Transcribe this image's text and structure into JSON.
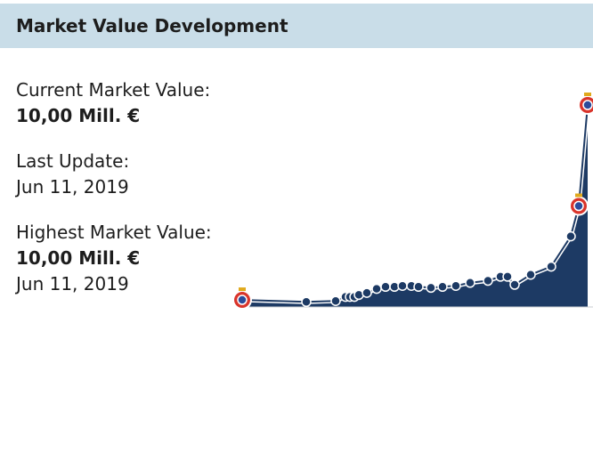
{
  "box": {
    "title": "Market Value Development"
  },
  "info": {
    "current_label": "Current Market Value:",
    "current_value": "10,00 Mill. €",
    "update_label": "Last Update:",
    "update_date": "Jun 11, 2019",
    "highest_label": "Highest Market Value:",
    "highest_value": "10,00 Mill. €",
    "highest_date": "Jun 11, 2019"
  },
  "colors": {
    "header_bg": "#c9dde8",
    "area_fill": "#1d3a64",
    "line": "#ffffff",
    "point": "#1d3a64",
    "club_badge": "#d9342b"
  },
  "chart_data": {
    "type": "area",
    "title": "",
    "xlabel": "",
    "ylabel": "",
    "grid": false,
    "legend": "none",
    "ylim": [
      0,
      10.5
    ],
    "series": [
      {
        "values": [
          0.35,
          0.25,
          0.3,
          0.5,
          0.5,
          0.5,
          0.6,
          0.7,
          0.9,
          1.0,
          1.0,
          1.05,
          1.05,
          1.0,
          0.95,
          1.0,
          1.05,
          1.2,
          1.3,
          1.5,
          1.5,
          1.1,
          1.6,
          2.0,
          3.5,
          5.0,
          10.0
        ],
        "badge_points": [
          0,
          25,
          26
        ]
      }
    ]
  }
}
